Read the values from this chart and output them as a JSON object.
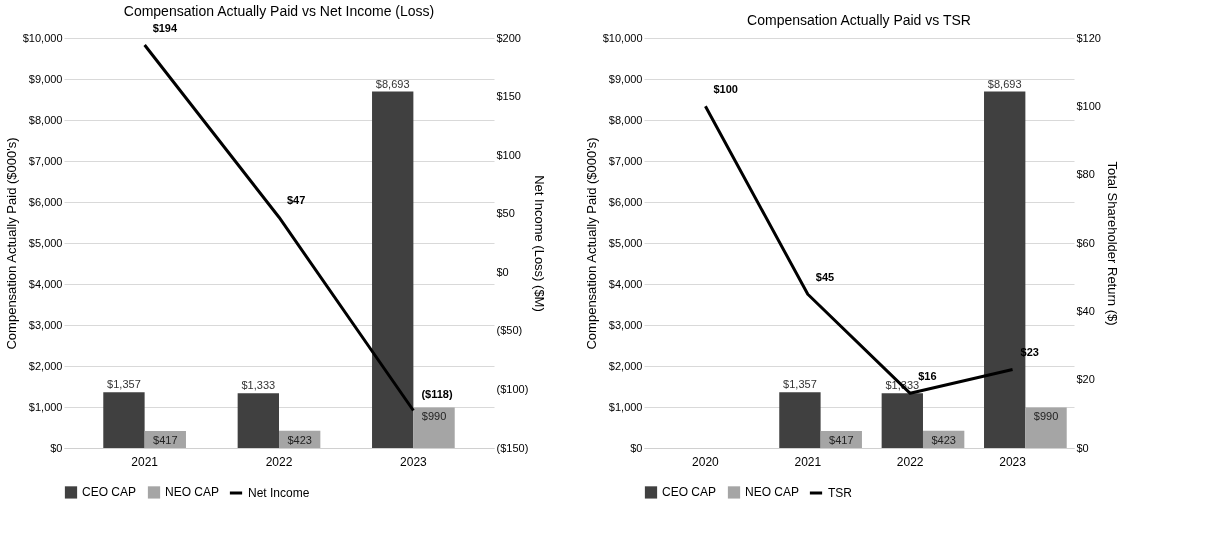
{
  "chart_data": [
    {
      "type": "bar",
      "title": "Compensation Actually Paid vs Net Income (Loss)",
      "ylabel": "Compensation Actually Paid ($000's)",
      "y2label": "Net Income (Loss) ($M)",
      "categories": [
        "2021",
        "2022",
        "2023"
      ],
      "series": [
        {
          "name": "CEO CAP",
          "color": "#404040",
          "values": [
            1357,
            1333,
            8693
          ],
          "value_labels": [
            "$1,357",
            "$1,333",
            "$8,693"
          ]
        },
        {
          "name": "NEO CAP",
          "color": "#a5a5a5",
          "values": [
            417,
            423,
            990
          ],
          "value_labels": [
            "$417",
            "$423",
            "$990"
          ]
        },
        {
          "name": "Net Income",
          "type": "line",
          "axis": "y2",
          "color": "#000000",
          "values": [
            194,
            47,
            -118
          ],
          "value_labels": [
            "$194",
            "$47",
            "($118)"
          ]
        }
      ],
      "ylim": [
        0,
        10000
      ],
      "yticks": [
        {
          "value": 0,
          "label": "$0"
        },
        {
          "value": 1000,
          "label": "$1,000"
        },
        {
          "value": 2000,
          "label": "$2,000"
        },
        {
          "value": 3000,
          "label": "$3,000"
        },
        {
          "value": 4000,
          "label": "$4,000"
        },
        {
          "value": 5000,
          "label": "$5,000"
        },
        {
          "value": 6000,
          "label": "$6,000"
        },
        {
          "value": 7000,
          "label": "$7,000"
        },
        {
          "value": 8000,
          "label": "$8,000"
        },
        {
          "value": 9000,
          "label": "$9,000"
        },
        {
          "value": 10000,
          "label": "$10,000"
        }
      ],
      "y2lim": [
        -150,
        200
      ],
      "y2ticks": [
        {
          "value": -150,
          "label": "($150)"
        },
        {
          "value": -100,
          "label": "($100)"
        },
        {
          "value": -50,
          "label": "($50)"
        },
        {
          "value": 0,
          "label": "$0"
        },
        {
          "value": 50,
          "label": "$50"
        },
        {
          "value": 100,
          "label": "$100"
        },
        {
          "value": 150,
          "label": "$150"
        },
        {
          "value": 200,
          "label": "$200"
        }
      ],
      "grid": "y",
      "legend": "bottom"
    },
    {
      "type": "bar",
      "title": "Compensation Actually Paid vs TSR",
      "ylabel": "Compensation Actually Paid ($000's)",
      "y2label": "Total Shareholder Return ($)",
      "categories": [
        "2020",
        "2021",
        "2022",
        "2023"
      ],
      "series": [
        {
          "name": "CEO CAP",
          "color": "#404040",
          "values": [
            null,
            1357,
            1333,
            8693
          ],
          "value_labels": [
            null,
            "$1,357",
            "$1,333",
            "$8,693"
          ]
        },
        {
          "name": "NEO CAP",
          "color": "#a5a5a5",
          "values": [
            null,
            417,
            423,
            990
          ],
          "value_labels": [
            null,
            "$417",
            "$423",
            "$990"
          ]
        },
        {
          "name": "TSR",
          "type": "line",
          "axis": "y2",
          "color": "#000000",
          "values": [
            100,
            45,
            16,
            23
          ],
          "value_labels": [
            "$100",
            "$45",
            "$16",
            "$23"
          ]
        }
      ],
      "ylim": [
        0,
        10000
      ],
      "yticks": [
        {
          "value": 0,
          "label": "$0"
        },
        {
          "value": 1000,
          "label": "$1,000"
        },
        {
          "value": 2000,
          "label": "$2,000"
        },
        {
          "value": 3000,
          "label": "$3,000"
        },
        {
          "value": 4000,
          "label": "$4,000"
        },
        {
          "value": 5000,
          "label": "$5,000"
        },
        {
          "value": 6000,
          "label": "$6,000"
        },
        {
          "value": 7000,
          "label": "$7,000"
        },
        {
          "value": 8000,
          "label": "$8,000"
        },
        {
          "value": 9000,
          "label": "$9,000"
        },
        {
          "value": 10000,
          "label": "$10,000"
        }
      ],
      "y2lim": [
        0,
        120
      ],
      "y2ticks": [
        {
          "value": 0,
          "label": "$0"
        },
        {
          "value": 20,
          "label": "$20"
        },
        {
          "value": 40,
          "label": "$40"
        },
        {
          "value": 60,
          "label": "$60"
        },
        {
          "value": 80,
          "label": "$80"
        },
        {
          "value": 100,
          "label": "$100"
        },
        {
          "value": 120,
          "label": "$120"
        }
      ],
      "grid": "y",
      "legend": "bottom"
    }
  ]
}
